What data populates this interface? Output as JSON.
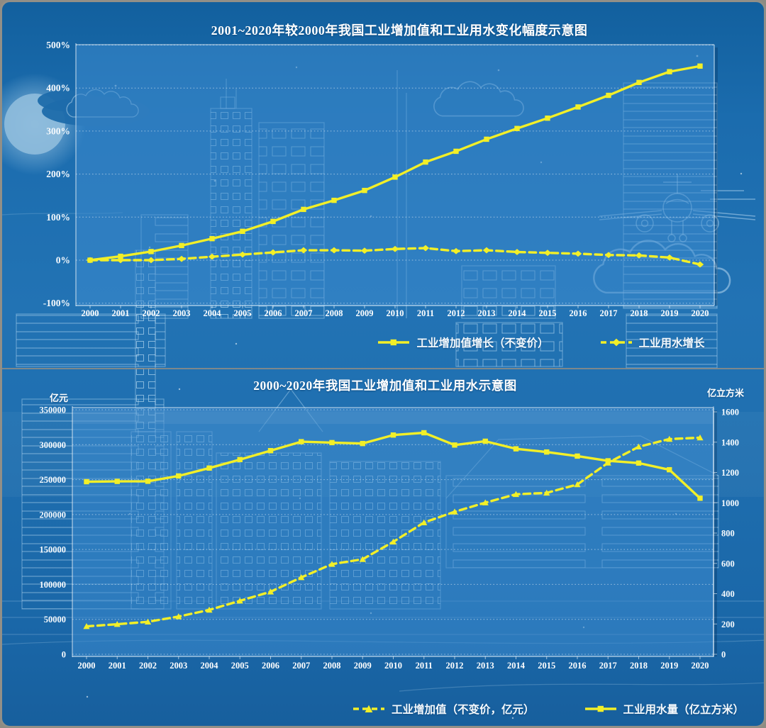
{
  "chart_data": [
    {
      "id": "change-rate-chart",
      "type": "line",
      "title": "2001~2020年较2000年我国工业增加值和工业用水变化幅度示意图",
      "categories": [
        "2000",
        "2001",
        "2002",
        "2003",
        "2004",
        "2005",
        "2006",
        "2007",
        "2008",
        "2009",
        "2010",
        "2011",
        "2012",
        "2013",
        "2014",
        "2015",
        "2016",
        "2017",
        "2018",
        "2019",
        "2020"
      ],
      "y_axis": {
        "tick_labels": [
          "500%",
          "400%",
          "300%",
          "200%",
          "100%",
          "0%",
          "-100%"
        ],
        "tick_values": [
          500,
          400,
          300,
          200,
          100,
          0,
          -100
        ],
        "range": [
          -100,
          500
        ],
        "unit": "%"
      },
      "grid": "horizontal-dotted",
      "legend_position": "bottom",
      "series": [
        {
          "name": "工业增加值增长（不变价）",
          "line": "solid",
          "marker": "square",
          "values": [
            0,
            9,
            20,
            34,
            50,
            67,
            90,
            118,
            139,
            162,
            193,
            228,
            253,
            281,
            306,
            330,
            356,
            383,
            413,
            438,
            451
          ]
        },
        {
          "name": "工业用水增长",
          "line": "dashed",
          "marker": "diamond",
          "values": [
            0,
            0,
            0,
            3,
            8,
            13,
            18,
            23,
            23,
            22,
            26,
            28,
            21,
            23,
            19,
            17,
            15,
            12,
            11,
            6,
            -10
          ]
        }
      ]
    },
    {
      "id": "levels-chart",
      "type": "line",
      "title": "2000~2020年我国工业增加值和工业用水示意图",
      "categories": [
        "2000",
        "2001",
        "2002",
        "2003",
        "2004",
        "2005",
        "2006",
        "2007",
        "2008",
        "2009",
        "2010",
        "2011",
        "2012",
        "2013",
        "2014",
        "2015",
        "2016",
        "2017",
        "2018",
        "2019",
        "2020"
      ],
      "left_axis": {
        "unit": "亿元",
        "tick_labels": [
          "350000",
          "300000",
          "250000",
          "200000",
          "150000",
          "100000",
          "50000",
          "0"
        ],
        "tick_values": [
          350000,
          300000,
          250000,
          200000,
          150000,
          100000,
          50000,
          0
        ],
        "range": [
          0,
          350000
        ]
      },
      "right_axis": {
        "unit": "亿立方米",
        "tick_labels": [
          "1600",
          "1400",
          "1200",
          "1000",
          "800",
          "600",
          "400",
          "200",
          "0"
        ],
        "tick_values": [
          1600,
          1400,
          1200,
          1000,
          800,
          600,
          400,
          200,
          0
        ],
        "range": [
          0,
          1600
        ]
      },
      "grid": "horizontal-dotted",
      "legend_position": "bottom",
      "series": [
        {
          "name": "工业增加值（不变价，亿元）",
          "axis": "left",
          "line": "dashed",
          "marker": "triangle",
          "values": [
            40000,
            43000,
            46500,
            54000,
            63500,
            76500,
            89500,
            110000,
            129000,
            136000,
            161000,
            188500,
            204000,
            217000,
            229000,
            231000,
            243000,
            274000,
            297000,
            308000,
            310000
          ]
        },
        {
          "name": "工业用水量（亿立方米）",
          "axis": "right",
          "line": "solid",
          "marker": "square",
          "values": [
            1139,
            1141,
            1142,
            1177,
            1229,
            1285,
            1344,
            1403,
            1397,
            1391,
            1447,
            1462,
            1381,
            1406,
            1356,
            1335,
            1308,
            1277,
            1262,
            1218,
            1030
          ]
        }
      ]
    }
  ]
}
